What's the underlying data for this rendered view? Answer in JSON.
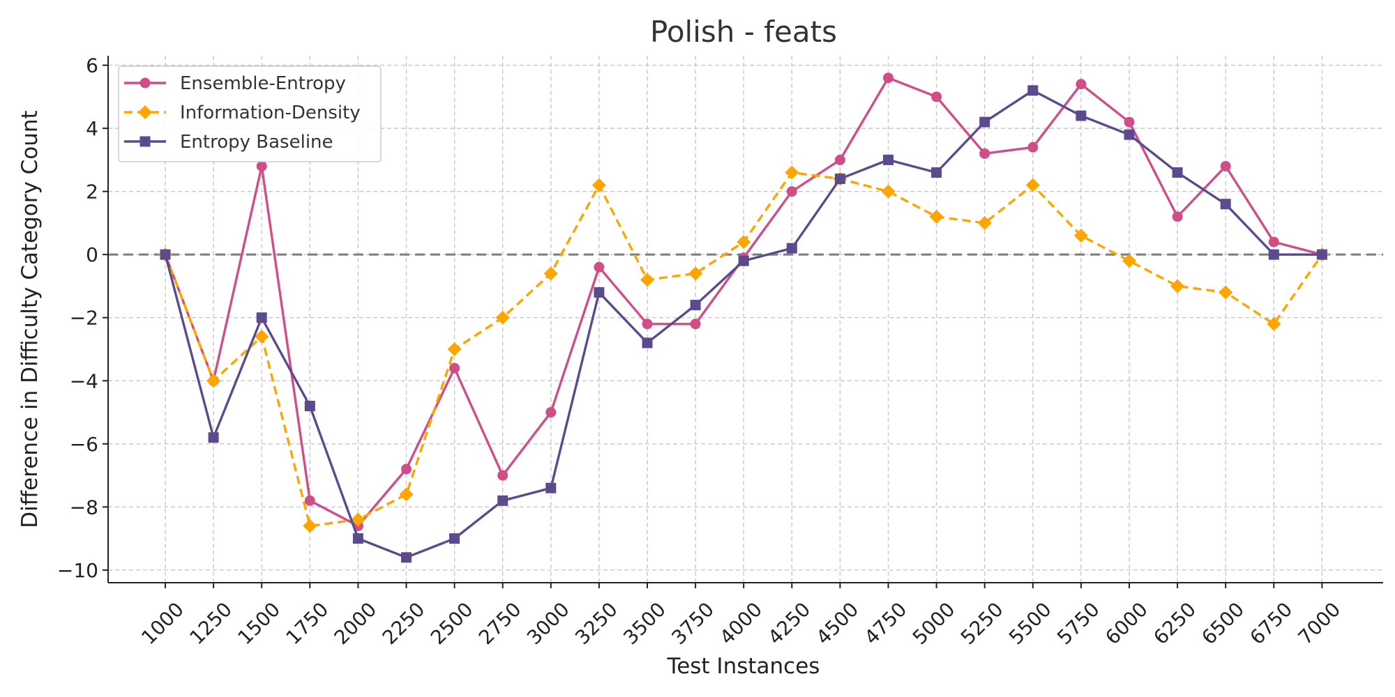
{
  "chart_data": {
    "type": "line",
    "title": "Polish - feats",
    "xlabel": "Test Instances",
    "ylabel": "Difference in Difficulty Category Count",
    "x": [
      1000,
      1250,
      1500,
      1750,
      2000,
      2250,
      2500,
      2750,
      3000,
      3250,
      3500,
      3750,
      4000,
      4250,
      4500,
      4750,
      5000,
      5250,
      5500,
      5750,
      6000,
      6250,
      6500,
      6750,
      7000
    ],
    "x_tick_labels": [
      "1000",
      "1250",
      "1500",
      "1750",
      "2000",
      "2250",
      "2500",
      "2750",
      "3000",
      "3250",
      "3500",
      "3750",
      "4000",
      "4250",
      "4500",
      "4750",
      "5000",
      "5250",
      "5500",
      "5750",
      "6000",
      "6250",
      "6500",
      "6750",
      "7000"
    ],
    "ylim": [
      -10.4,
      6.3
    ],
    "y_ticks": [
      6,
      4,
      2,
      0,
      -2,
      -4,
      -6,
      -8,
      -10
    ],
    "y_tick_labels": [
      "6",
      "4",
      "2",
      "0",
      "−2",
      "−4",
      "−6",
      "−8",
      "−10"
    ],
    "grid": true,
    "reference_line": 0,
    "legend_position": "top-left",
    "series": [
      {
        "name": "Ensemble-Entropy",
        "color": "#d14d87",
        "marker": "circle",
        "line_style": "solid",
        "values": [
          0,
          -4.0,
          2.8,
          -7.8,
          -8.6,
          -6.8,
          -3.6,
          -7.0,
          -5.0,
          -0.4,
          -2.2,
          -2.2,
          -0.1,
          2.0,
          3.0,
          5.6,
          5.0,
          3.2,
          3.4,
          5.4,
          4.2,
          1.2,
          2.8,
          0.4,
          0.0
        ]
      },
      {
        "name": "Information-Density",
        "color": "#ffa500",
        "marker": "diamond",
        "line_style": "dashed",
        "values": [
          0,
          -4.0,
          -2.6,
          -8.6,
          -8.4,
          -7.6,
          -3.0,
          -2.0,
          -0.6,
          2.2,
          -0.8,
          -0.6,
          0.4,
          2.6,
          2.4,
          2.0,
          1.2,
          1.0,
          2.2,
          0.6,
          -0.2,
          -1.0,
          -1.2,
          -2.2,
          0.0
        ]
      },
      {
        "name": "Entropy Baseline",
        "color": "#5c4a8f",
        "marker": "square",
        "line_style": "solid",
        "values": [
          0,
          -5.8,
          -2.0,
          -4.8,
          -9.0,
          -9.6,
          -9.0,
          -7.8,
          -7.4,
          -1.2,
          -2.8,
          -1.6,
          -0.2,
          0.2,
          2.4,
          3.0,
          2.6,
          4.2,
          5.2,
          4.4,
          3.8,
          2.6,
          1.6,
          0.0,
          0.0
        ]
      }
    ]
  }
}
